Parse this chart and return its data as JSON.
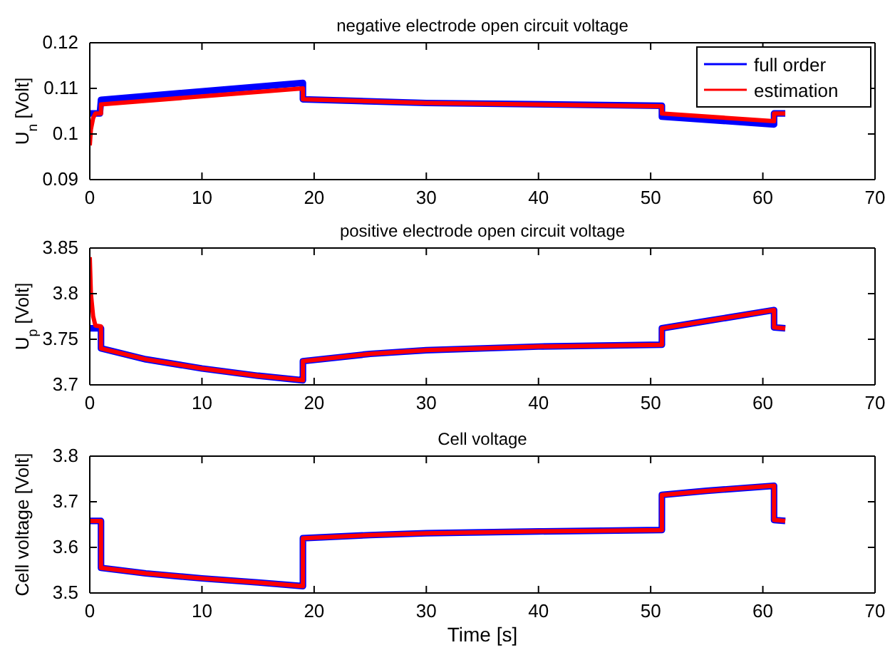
{
  "chart_data": [
    {
      "type": "line",
      "title": "negative electrode open circuit voltage",
      "ylabel": "U$_{n}$ [Volt]",
      "xlim": [
        0,
        70
      ],
      "xticks": [
        0,
        10,
        20,
        30,
        40,
        50,
        60,
        70
      ],
      "ylim": [
        0.09,
        0.12
      ],
      "yticks": [
        0.09,
        0.1,
        0.11,
        0.12
      ],
      "grid": false,
      "legend": "top right",
      "line_style": "solid",
      "marker": "none",
      "series": [
        {
          "name": "full order",
          "color": "#0000ff",
          "x": [
            0,
            0.9,
            1,
            19,
            19,
            30,
            51,
            51,
            61,
            61,
            62
          ],
          "values": [
            0.1045,
            0.1045,
            0.1075,
            0.1112,
            0.1076,
            0.1068,
            0.1062,
            0.1038,
            0.1021,
            0.1045,
            0.1045
          ]
        },
        {
          "name": "estimation",
          "color": "#ff0000",
          "x": [
            0,
            0.1,
            0.3,
            0.5,
            1,
            1,
            19,
            19,
            30,
            51,
            51,
            61,
            61,
            62
          ],
          "values": [
            0.0975,
            0.101,
            0.1035,
            0.1045,
            0.1045,
            0.1065,
            0.11,
            0.1076,
            0.1068,
            0.1061,
            0.1045,
            0.1028,
            0.1045,
            0.1045
          ]
        }
      ]
    },
    {
      "type": "line",
      "title": "positive electrode open circuit voltage",
      "ylabel": "U$_{p}$ [Volt]",
      "xlim": [
        0,
        70
      ],
      "xticks": [
        0,
        10,
        20,
        30,
        40,
        50,
        60,
        70
      ],
      "ylim": [
        3.7,
        3.85
      ],
      "yticks": [
        3.7,
        3.75,
        3.8,
        3.85
      ],
      "grid": false,
      "legend": false,
      "line_style": "solid",
      "marker": "none",
      "series": [
        {
          "color": "#0000ff",
          "x": [
            0,
            1,
            1,
            5,
            10,
            15,
            19,
            19,
            25,
            30,
            40,
            51,
            51,
            55,
            61,
            61,
            62
          ],
          "values": [
            3.762,
            3.762,
            3.74,
            3.728,
            3.718,
            3.71,
            3.705,
            3.726,
            3.734,
            3.738,
            3.742,
            3.744,
            3.762,
            3.77,
            3.782,
            3.763,
            3.762
          ]
        },
        {
          "color": "#ff0000",
          "x": [
            0,
            0.1,
            0.3,
            0.5,
            1,
            1,
            5,
            10,
            15,
            19,
            19,
            25,
            30,
            40,
            51,
            51,
            55,
            61,
            61,
            62
          ],
          "values": [
            3.84,
            3.8,
            3.775,
            3.765,
            3.764,
            3.74,
            3.728,
            3.718,
            3.71,
            3.705,
            3.726,
            3.734,
            3.738,
            3.742,
            3.744,
            3.762,
            3.77,
            3.782,
            3.763,
            3.762
          ]
        }
      ]
    },
    {
      "type": "line",
      "title": "Cell voltage",
      "xlabel": "Time [s]",
      "ylabel": "Cell voltage [Volt]",
      "xlim": [
        0,
        70
      ],
      "xticks": [
        0,
        10,
        20,
        30,
        40,
        50,
        60,
        70
      ],
      "ylim": [
        3.5,
        3.8
      ],
      "yticks": [
        3.5,
        3.6,
        3.7,
        3.8
      ],
      "grid": false,
      "legend": false,
      "line_style": "solid",
      "marker": "none",
      "series": [
        {
          "color": "#0000ff",
          "x": [
            0,
            1,
            1,
            5,
            10,
            15,
            19,
            19,
            25,
            30,
            40,
            51,
            51,
            55,
            61,
            61,
            62
          ],
          "values": [
            3.658,
            3.658,
            3.555,
            3.543,
            3.532,
            3.523,
            3.515,
            3.62,
            3.627,
            3.631,
            3.635,
            3.638,
            3.715,
            3.724,
            3.735,
            3.66,
            3.658
          ]
        },
        {
          "color": "#ff0000",
          "x": [
            0,
            1,
            1,
            5,
            10,
            15,
            19,
            19,
            25,
            30,
            40,
            51,
            51,
            55,
            61,
            61,
            62
          ],
          "values": [
            3.658,
            3.658,
            3.555,
            3.543,
            3.532,
            3.523,
            3.515,
            3.62,
            3.627,
            3.631,
            3.635,
            3.638,
            3.715,
            3.724,
            3.735,
            3.66,
            3.658
          ]
        }
      ]
    }
  ]
}
